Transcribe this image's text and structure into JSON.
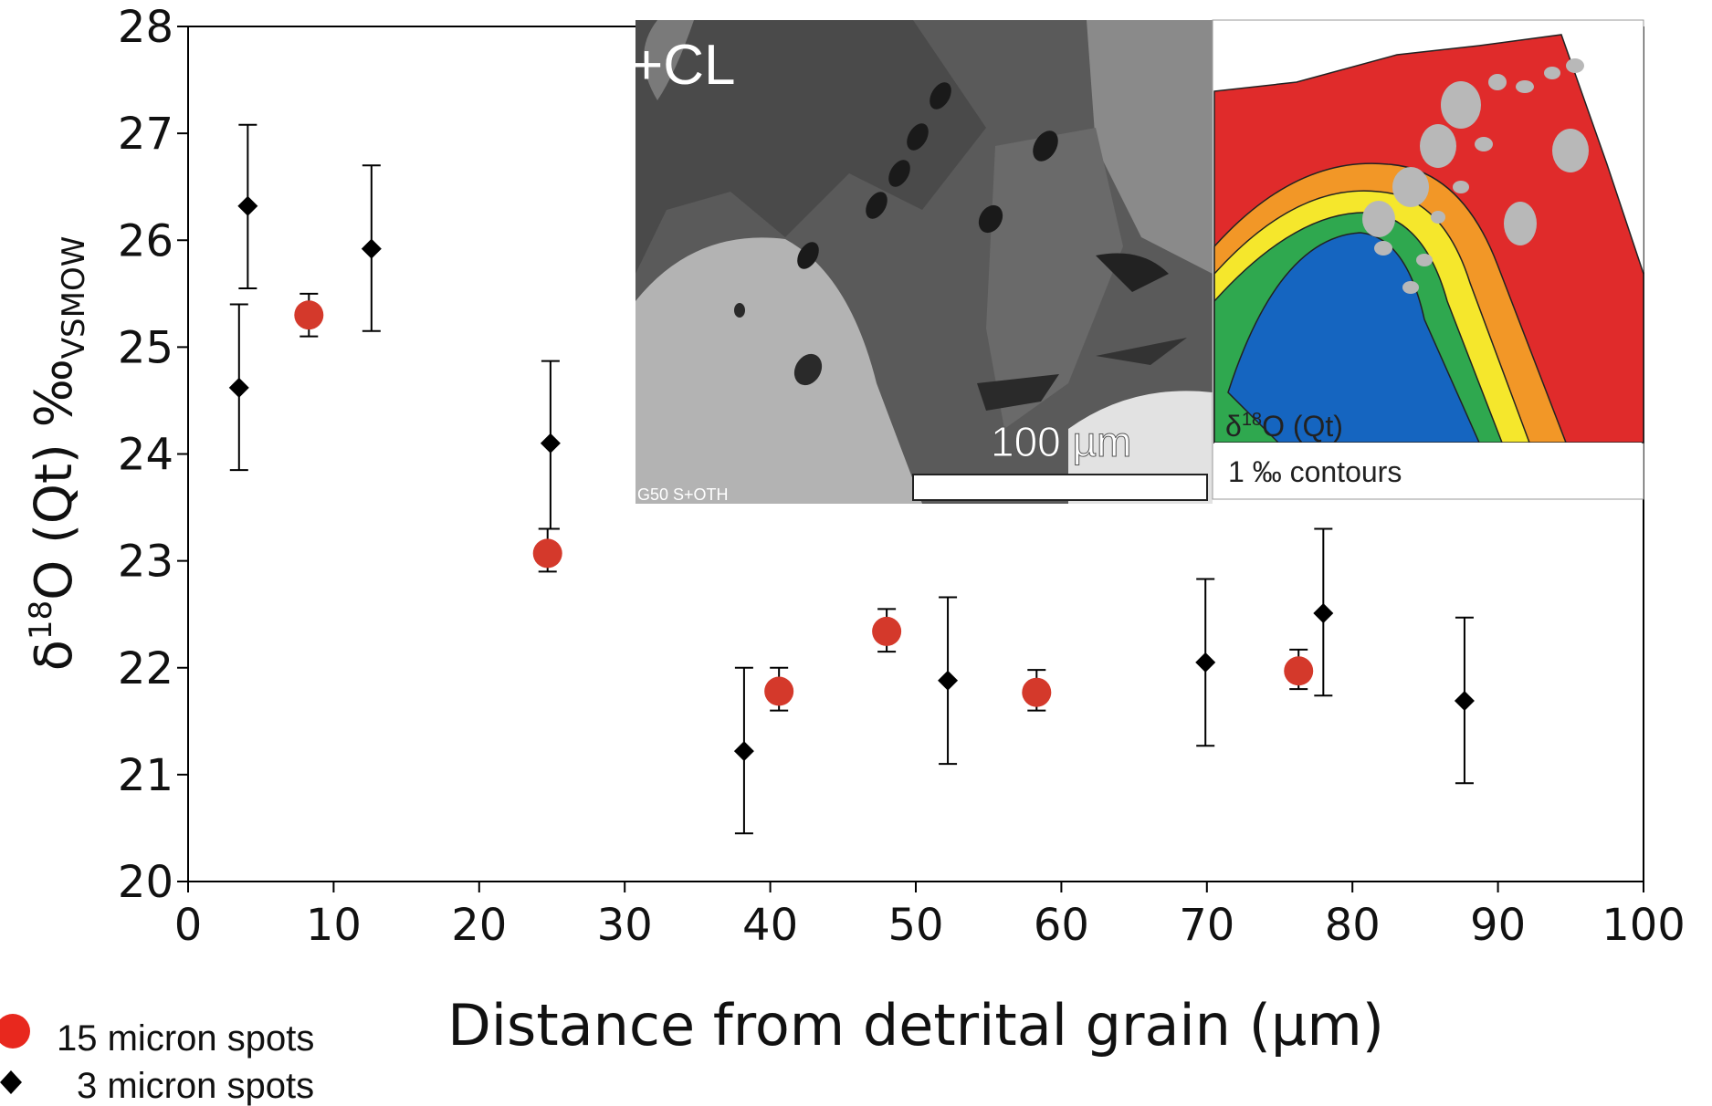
{
  "chart_data": {
    "type": "scatter",
    "title": "",
    "xlabel": "Distance from detrital grain (µm)",
    "ylabel_parts": {
      "base": "δ",
      "sup": "18",
      "main": "O (Qt) ‰",
      "sub": "VSMOW"
    },
    "xlim": [
      0,
      100
    ],
    "ylim": [
      20,
      28
    ],
    "x_ticks": [
      0,
      10,
      20,
      30,
      40,
      50,
      60,
      70,
      80,
      90,
      100
    ],
    "y_ticks": [
      20,
      21,
      22,
      23,
      24,
      25,
      26,
      27,
      28
    ],
    "grid": false,
    "legend_position": "bottom-left",
    "series": [
      {
        "name": "15 micron spots",
        "marker": "circle",
        "color": "#d4392b",
        "points": [
          {
            "x": 8.3,
            "y": 25.3,
            "err_low": 25.1,
            "err_high": 25.5
          },
          {
            "x": 24.7,
            "y": 23.07,
            "err_low": 22.9,
            "err_high": 23.3
          },
          {
            "x": 40.6,
            "y": 21.78,
            "err_low": 21.6,
            "err_high": 22.0
          },
          {
            "x": 48.0,
            "y": 22.34,
            "err_low": 22.15,
            "err_high": 22.55
          },
          {
            "x": 58.3,
            "y": 21.77,
            "err_low": 21.6,
            "err_high": 21.98
          },
          {
            "x": 76.3,
            "y": 21.97,
            "err_low": 21.8,
            "err_high": 22.17
          }
        ]
      },
      {
        "name": "3 micron spots",
        "marker": "diamond",
        "color": "#000000",
        "points": [
          {
            "x": 3.5,
            "y": 24.62,
            "err_low": 23.85,
            "err_high": 25.4
          },
          {
            "x": 4.1,
            "y": 26.32,
            "err_low": 25.55,
            "err_high": 27.08
          },
          {
            "x": 12.6,
            "y": 25.92,
            "err_low": 25.15,
            "err_high": 26.7
          },
          {
            "x": 24.9,
            "y": 24.1,
            "err_low": 23.3,
            "err_high": 24.87
          },
          {
            "x": 38.2,
            "y": 21.22,
            "err_low": 20.45,
            "err_high": 22.0
          },
          {
            "x": 52.2,
            "y": 21.88,
            "err_low": 21.1,
            "err_high": 22.66
          },
          {
            "x": 69.9,
            "y": 22.05,
            "err_low": 21.27,
            "err_high": 22.83
          },
          {
            "x": 78.0,
            "y": 22.51,
            "err_low": 21.74,
            "err_high": 23.3
          },
          {
            "x": 87.7,
            "y": 21.69,
            "err_low": 20.92,
            "err_high": 22.47
          }
        ]
      }
    ]
  },
  "inset_cl": {
    "label": "+CL",
    "scale_label": "100 µm",
    "footer_text": "G50 S+OTH"
  },
  "inset_map": {
    "label_base": "δ",
    "label_sup": "18",
    "label_main": "O (Qt)",
    "contours_label": "1 ‰ contours",
    "colors": [
      "#e02b2b",
      "#f29727",
      "#f5e72c",
      "#2fa84f",
      "#1565c0"
    ]
  }
}
